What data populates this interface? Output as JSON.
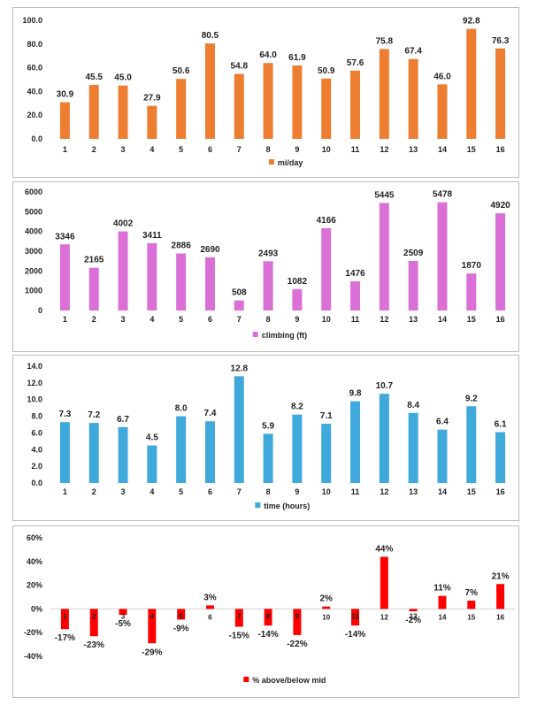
{
  "chart_data": [
    {
      "type": "bar",
      "categories": [
        "1",
        "2",
        "3",
        "4",
        "5",
        "6",
        "7",
        "8",
        "9",
        "10",
        "11",
        "12",
        "13",
        "14",
        "15",
        "16"
      ],
      "series": [
        {
          "name": "mi/day",
          "values": [
            30.9,
            45.5,
            45.0,
            27.9,
            50.6,
            80.5,
            54.8,
            64.0,
            61.9,
            50.9,
            57.6,
            75.8,
            67.4,
            46.0,
            92.8,
            76.3
          ]
        }
      ],
      "labels": [
        "30.9",
        "45.5",
        "45.0",
        "27.9",
        "50.6",
        "80.5",
        "54.8",
        "64.0",
        "61.9",
        "50.9",
        "57.6",
        "75.8",
        "67.4",
        "46.0",
        "92.8",
        "76.3"
      ],
      "yticks": [
        "0.0",
        "20.0",
        "40.0",
        "60.0",
        "80.0",
        "100.0"
      ],
      "ylim": [
        0,
        100
      ],
      "color": "#ED7D31",
      "legend": "bottom"
    },
    {
      "type": "bar",
      "categories": [
        "1",
        "2",
        "3",
        "4",
        "5",
        "6",
        "7",
        "8",
        "9",
        "10",
        "11",
        "12",
        "13",
        "14",
        "15",
        "16"
      ],
      "series": [
        {
          "name": "climbing (ft)",
          "values": [
            3346,
            2165,
            4002,
            3411,
            2886,
            2690,
            508,
            2493,
            1082,
            4166,
            1476,
            5445,
            2509,
            5478,
            1870,
            4920
          ]
        }
      ],
      "labels": [
        "3346",
        "2165",
        "4002",
        "3411",
        "2886",
        "2690",
        "508",
        "2493",
        "1082",
        "4166",
        "1476",
        "5445",
        "2509",
        "5478",
        "1870",
        "4920"
      ],
      "yticks": [
        "0",
        "1000",
        "2000",
        "3000",
        "4000",
        "5000",
        "6000"
      ],
      "ylim": [
        0,
        6000
      ],
      "color": "#DA70D6",
      "legend": "bottom"
    },
    {
      "type": "bar",
      "categories": [
        "1",
        "2",
        "3",
        "4",
        "5",
        "6",
        "7",
        "8",
        "9",
        "10",
        "11",
        "12",
        "13",
        "14",
        "15",
        "16"
      ],
      "series": [
        {
          "name": "time (hours)",
          "values": [
            7.3,
            7.2,
            6.7,
            4.5,
            8.0,
            7.4,
            12.8,
            5.9,
            8.2,
            7.1,
            9.8,
            10.7,
            8.4,
            6.4,
            9.2,
            6.1
          ]
        }
      ],
      "labels": [
        "7.3",
        "7.2",
        "6.7",
        "4.5",
        "8.0",
        "7.4",
        "12.8",
        "5.9",
        "8.2",
        "7.1",
        "9.8",
        "10.7",
        "8.4",
        "6.4",
        "9.2",
        "6.1"
      ],
      "yticks": [
        "0.0",
        "2.0",
        "4.0",
        "6.0",
        "8.0",
        "10.0",
        "12.0",
        "14.0"
      ],
      "ylim": [
        0,
        14
      ],
      "color": "#3FA9DC",
      "legend": "bottom"
    },
    {
      "type": "bar",
      "categories": [
        "1",
        "2",
        "3",
        "4",
        "5",
        "6",
        "7",
        "8",
        "9",
        "10",
        "11",
        "12",
        "13",
        "14",
        "15",
        "16"
      ],
      "series": [
        {
          "name": "% above/below mid",
          "values": [
            -17,
            -23,
            -5,
            -29,
            -9,
            3,
            -15,
            -14,
            -22,
            2,
            -14,
            44,
            -2,
            11,
            7,
            21
          ]
        }
      ],
      "labels": [
        "-17%",
        "-23%",
        "-5%",
        "-29%",
        "-9%",
        "3%",
        "-15%",
        "-14%",
        "-22%",
        "2%",
        "-14%",
        "44%",
        "-2%",
        "11%",
        "7%",
        "21%"
      ],
      "yticks": [
        "-40%",
        "-20%",
        "0%",
        "20%",
        "40%",
        "60%"
      ],
      "ylim": [
        -40,
        60
      ],
      "color": "#FF0000",
      "legend": "bottom"
    }
  ]
}
